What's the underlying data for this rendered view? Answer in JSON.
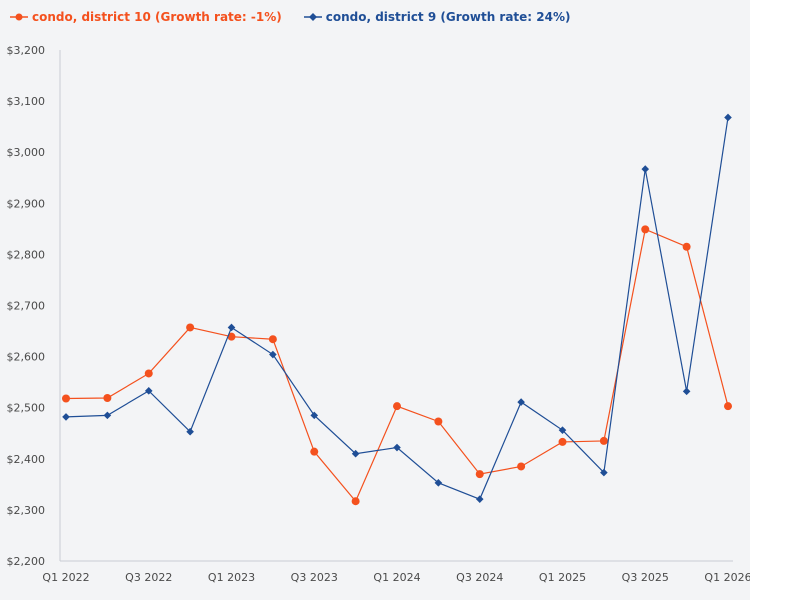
{
  "colors": {
    "district10": "#f4511e",
    "district9": "#1f4e96",
    "axis": "#c8ccd4",
    "background": "#f3f4f6"
  },
  "legend": {
    "district10_label": "condo, district 10 (Growth rate: -1%)",
    "district9_label": "condo, district 9 (Growth rate: 24%)"
  },
  "chart_data": {
    "type": "line",
    "title": "",
    "xlabel": "",
    "ylabel": "",
    "ylim": [
      2200,
      3200
    ],
    "yticks": [
      2200,
      2300,
      2400,
      2500,
      2600,
      2700,
      2800,
      2900,
      3000,
      3100,
      3200
    ],
    "ytick_labels": [
      "$2,200",
      "$2,300",
      "$2,400",
      "$2,500",
      "$2,600",
      "$2,700",
      "$2,800",
      "$2,900",
      "$3,000",
      "$3,100",
      "$3,200"
    ],
    "categories": [
      "Q1 2022",
      "Q2 2022",
      "Q3 2022",
      "Q4 2022",
      "Q1 2023",
      "Q2 2023",
      "Q3 2023",
      "Q4 2023",
      "Q1 2024",
      "Q2 2024",
      "Q3 2024",
      "Q4 2024",
      "Q1 2025",
      "Q2 2025",
      "Q3 2025",
      "Q4 2025",
      "Q1 2026"
    ],
    "xtick_labels": [
      "Q1 2022",
      "Q3 2022",
      "Q1 2023",
      "Q3 2023",
      "Q1 2024",
      "Q3 2024",
      "Q1 2025",
      "Q3 2025",
      "Q1 2026"
    ],
    "grid": false,
    "legend_position": "top-left",
    "series": [
      {
        "name": "condo, district 10 (Growth rate: -1%)",
        "color": "#f4511e",
        "marker": "circle",
        "values": [
          2518,
          2519,
          2567,
          2657,
          2639,
          2634,
          2414,
          2317,
          2503,
          2473,
          2370,
          2385,
          2433,
          2435,
          2849,
          2815,
          2503
        ]
      },
      {
        "name": "condo, district 9 (Growth rate: 24%)",
        "color": "#1f4e96",
        "marker": "diamond",
        "values": [
          2482,
          2485,
          2533,
          2453,
          2657,
          2604,
          2485,
          2410,
          2422,
          2353,
          2321,
          2511,
          2456,
          2373,
          2967,
          2532,
          3068
        ]
      }
    ]
  }
}
